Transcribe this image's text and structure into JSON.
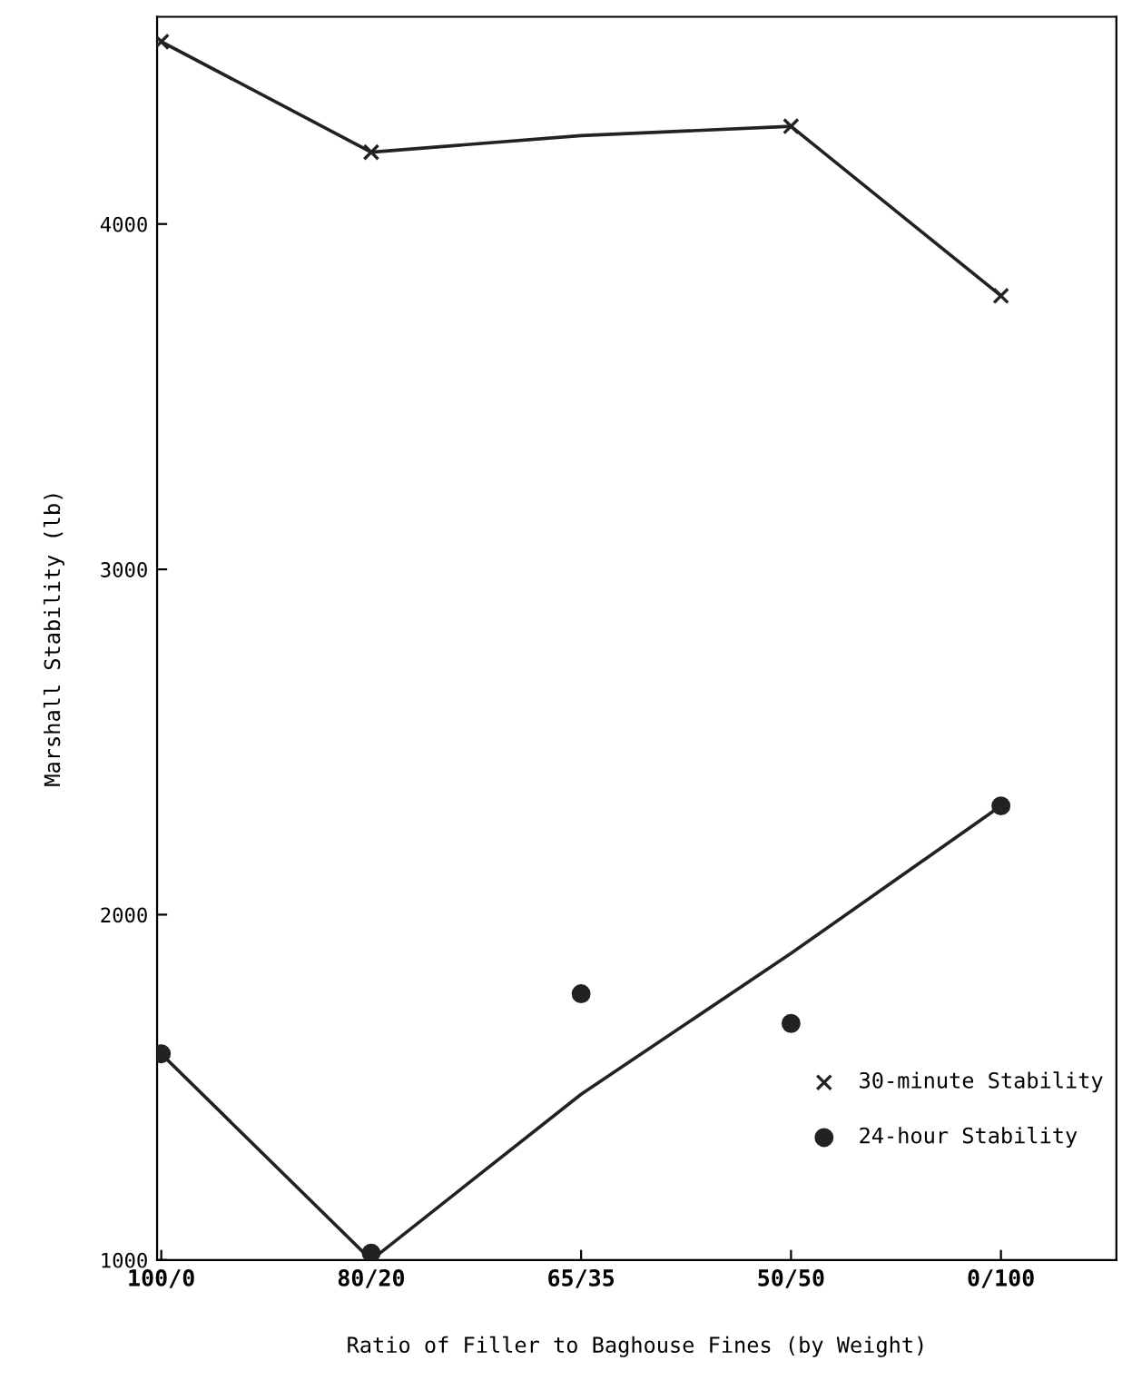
{
  "chart_data": {
    "type": "scatter",
    "xlabel": "Ratio of Filler to Baghouse Fines (by Weight)",
    "ylabel": "Marshall Stability (lb)",
    "categories": [
      "100/0",
      "80/20",
      "65/35",
      "50/50",
      "0/100"
    ],
    "ylim": [
      1000,
      4600
    ],
    "yticks": [
      1000,
      2000,
      3000,
      4000
    ],
    "legend": "lower right",
    "series": [
      {
        "name": "30-minute Stability",
        "marker": "cross",
        "color": "#222222",
        "values": [
          4528,
          4208,
          null,
          4283,
          3792
        ]
      },
      {
        "name": "24-hour Stability",
        "marker": "circle",
        "color": "#222222",
        "values": [
          1597,
          1020,
          1771,
          1685,
          2315
        ]
      },
      {
        "type": "line",
        "color": "#222222",
        "values": [
          4528,
          4208,
          4256,
          4283,
          3792
        ]
      },
      {
        "type": "line",
        "color": "#222222",
        "values": [
          1597,
          1000,
          1480,
          1888,
          2315
        ]
      }
    ]
  }
}
